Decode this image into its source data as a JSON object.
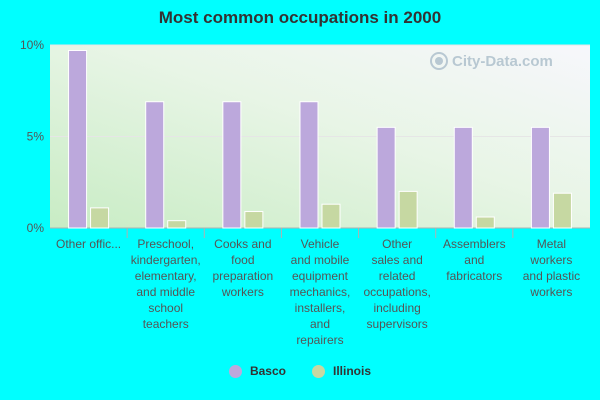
{
  "chart_data": {
    "type": "bar",
    "title": "Most common occupations in 2000",
    "xlabel": "",
    "ylabel": "",
    "ylim": [
      0,
      10
    ],
    "ytick_labels": [
      "0%",
      "5%",
      "10%"
    ],
    "yticks": [
      0,
      5,
      10
    ],
    "categories": [
      "Other offic...",
      "Preschool, kindergarten, elementary, and middle school teachers",
      "Cooks and food preparation workers",
      "Vehicle and mobile equipment mechanics, installers, and repairers",
      "Other sales and related occupations, including supervisors",
      "Assemblers and fabricators",
      "Metal workers and plastic workers"
    ],
    "category_lines": [
      [
        "Other offic..."
      ],
      [
        "Preschool,",
        "kindergarten,",
        "elementary,",
        "and middle",
        "school",
        "teachers"
      ],
      [
        "Cooks and",
        "food",
        "preparation",
        "workers"
      ],
      [
        "Vehicle",
        "and mobile",
        "equipment",
        "mechanics,",
        "installers,",
        "and",
        "repairers"
      ],
      [
        "Other",
        "sales and",
        "related",
        "occupations,",
        "including",
        "supervisors"
      ],
      [
        "Assemblers",
        "and",
        "fabricators"
      ],
      [
        "Metal",
        "workers",
        "and plastic",
        "workers"
      ]
    ],
    "series": [
      {
        "name": "Basco",
        "color": "#bca8dc",
        "values": [
          9.7,
          6.9,
          6.9,
          6.9,
          5.5,
          5.5,
          5.5
        ]
      },
      {
        "name": "Illinois",
        "color": "#c6d8a2",
        "values": [
          1.1,
          0.4,
          0.9,
          1.3,
          2.0,
          0.6,
          1.9
        ]
      }
    ],
    "legend_position": "bottom"
  },
  "watermark": {
    "text": "City-Data.com",
    "icon": "search-icon"
  }
}
